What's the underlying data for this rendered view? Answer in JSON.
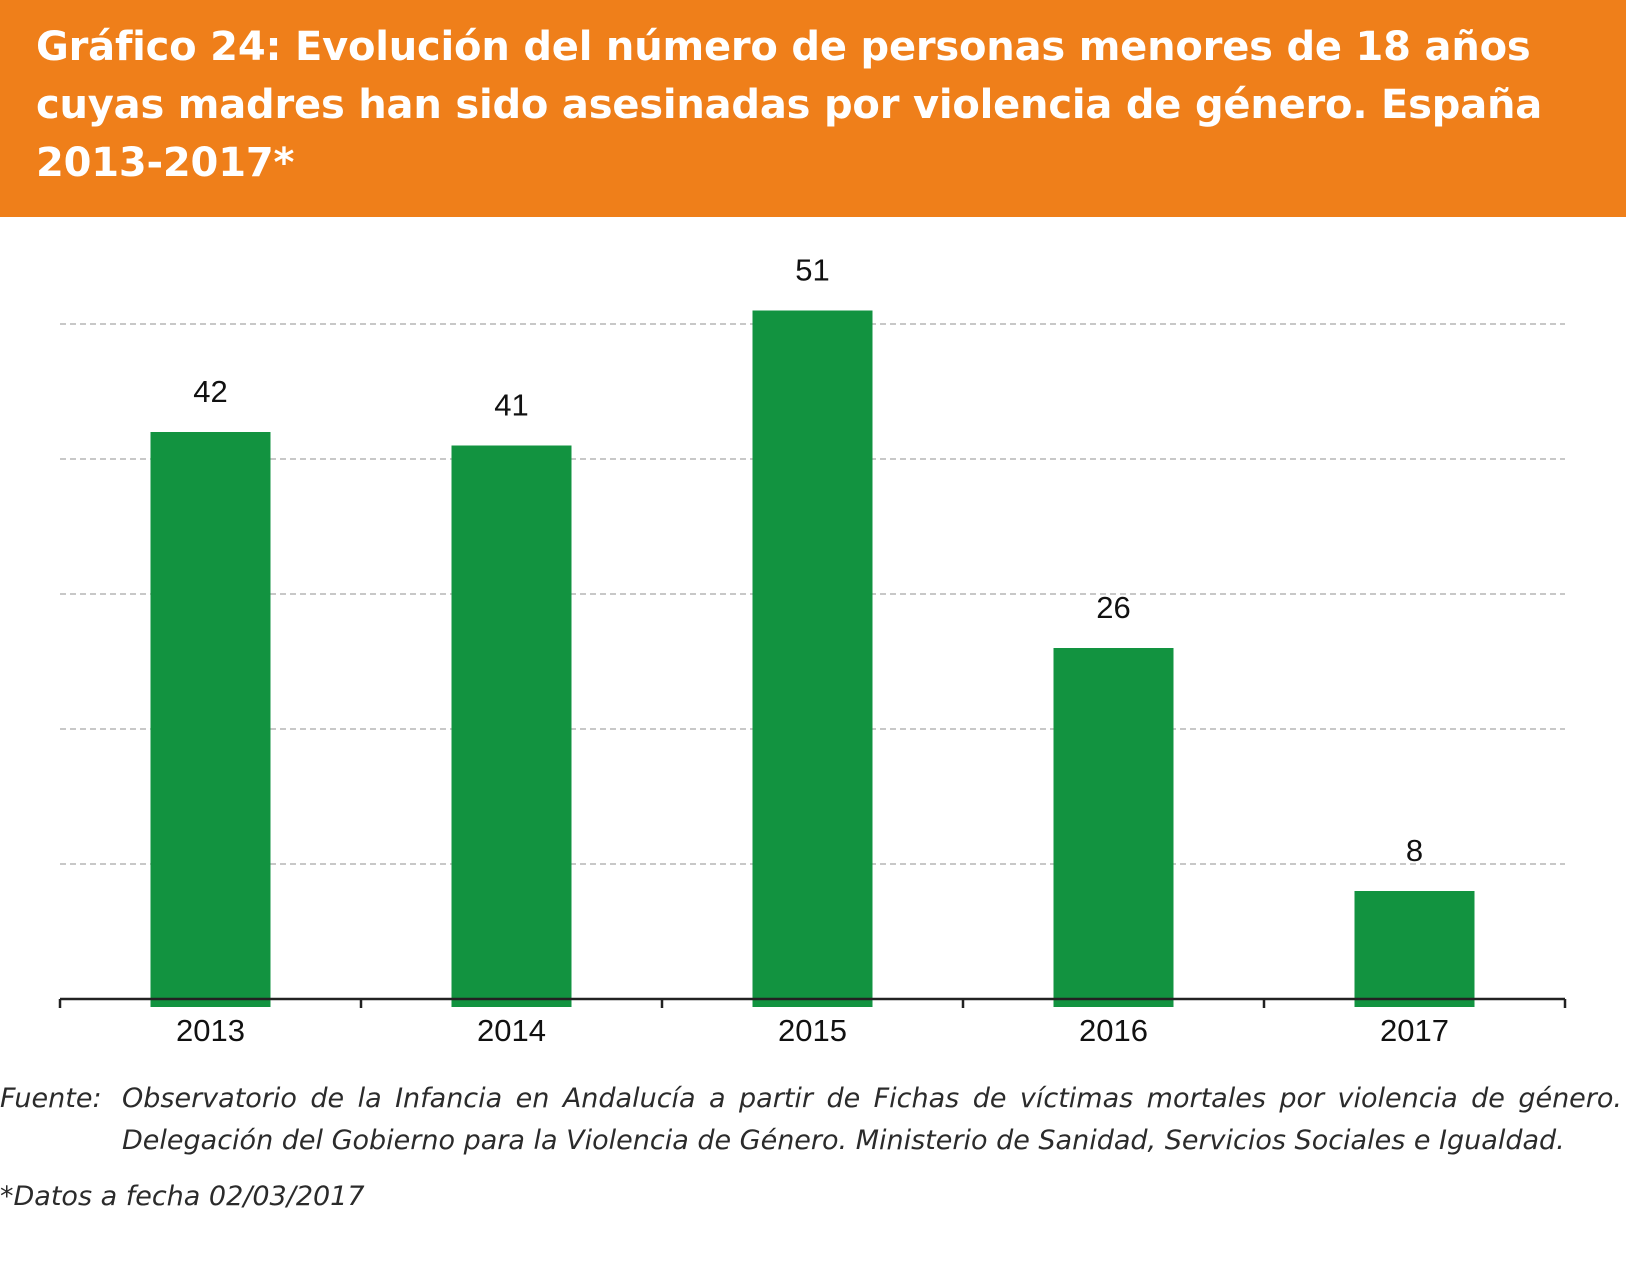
{
  "title": "Gráfico 24: Evolución del número de personas menores de 18 años cuyas madres han sido asesinadas por violencia de género. España 2013-2017*",
  "colors": {
    "banner": "#ef7f1a",
    "bar": "#129340",
    "grid": "#c8c8c8",
    "axis": "#222222"
  },
  "chart_data": {
    "type": "bar",
    "categories": [
      "2013",
      "2014",
      "2015",
      "2016",
      "2017"
    ],
    "values": [
      42,
      41,
      51,
      26,
      8
    ],
    "title": "",
    "xlabel": "",
    "ylabel": "",
    "ylim": [
      0,
      50
    ],
    "grid": true,
    "legend": "none",
    "data_labels": true
  },
  "footer": {
    "source_label": "Fuente:",
    "source_text": "Observatorio de la Infancia en Andalucía a partir de Fichas de víctimas mortales por violencia de género. Delegación del Gobierno para la Violencia de Género. Ministerio de Sanidad, Servicios Sociales e Igualdad.",
    "note": "*Datos a fecha 02/03/2017"
  }
}
